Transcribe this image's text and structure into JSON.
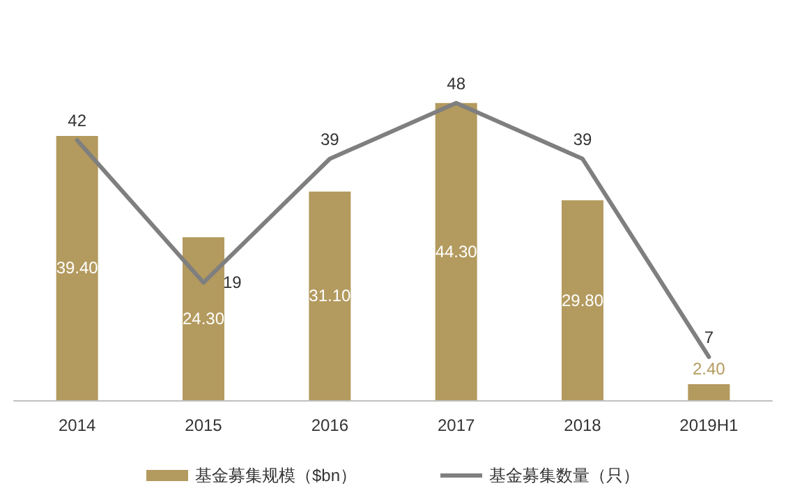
{
  "chart_data": {
    "type": "bar",
    "categories": [
      "2014",
      "2015",
      "2016",
      "2017",
      "2018",
      "2019H1"
    ],
    "series": [
      {
        "name": "基金募集规模（$bn）",
        "color": "#b39a5e",
        "values": [
          39.4,
          24.3,
          31.1,
          44.3,
          29.8,
          2.4
        ],
        "value_labels": [
          "39.40",
          "24.30",
          "31.10",
          "44.30",
          "29.80",
          "2.40"
        ]
      },
      {
        "name": "基金募集数量（只）",
        "type": "line",
        "axis": "y2",
        "color": "#7f7f7f",
        "values": [
          42,
          19,
          39,
          48,
          39,
          7
        ],
        "value_labels": [
          "42",
          "19",
          "39",
          "48",
          "39",
          "7"
        ]
      }
    ],
    "legend": "bottom",
    "grid": false,
    "marker": "none",
    "line_style": "solid",
    "tick_labels": "x"
  }
}
